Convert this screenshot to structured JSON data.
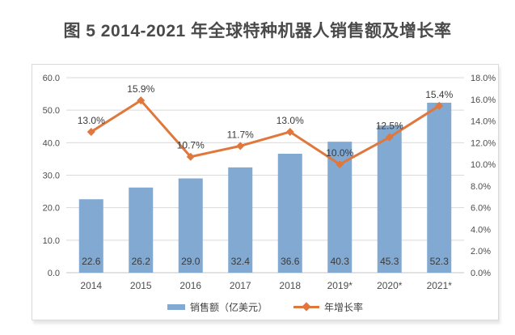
{
  "page": {
    "title": "图 5 2014-2021 年全球特种机器人销售额及增长率"
  },
  "chart_data": {
    "type": "bar",
    "subtype": "bar-line-combo",
    "title": "图 5 2014-2021 年全球特种机器人销售额及增长率",
    "categories": [
      "2014",
      "2015",
      "2016",
      "2017",
      "2018",
      "2019*",
      "2020*",
      "2021*"
    ],
    "series": [
      {
        "name": "销售额（亿美元）",
        "type": "bar",
        "axis": "left",
        "color": "#82a9d1",
        "values": [
          22.6,
          26.2,
          29.0,
          32.4,
          36.6,
          40.3,
          45.3,
          52.3
        ],
        "labels": [
          "22.6",
          "26.2",
          "29.0",
          "32.4",
          "36.6",
          "40.3",
          "45.3",
          "52.3"
        ]
      },
      {
        "name": "年增长率",
        "type": "line",
        "axis": "right",
        "color": "#e0773c",
        "values": [
          13.0,
          15.9,
          10.7,
          11.7,
          13.0,
          10.0,
          12.5,
          15.4
        ],
        "labels": [
          "13.0%",
          "15.9%",
          "10.7%",
          "11.7%",
          "13.0%",
          "10.0%",
          "12.5%",
          "15.4%"
        ]
      }
    ],
    "left_axis": {
      "min": 0,
      "max": 60,
      "step": 10,
      "tick_labels": [
        "0.0",
        "10.0",
        "20.0",
        "30.0",
        "40.0",
        "50.0",
        "60.0"
      ]
    },
    "right_axis": {
      "min": 0,
      "max": 18,
      "step": 2,
      "tick_labels": [
        "0.0%",
        "2.0%",
        "4.0%",
        "6.0%",
        "8.0%",
        "10.0%",
        "12.0%",
        "14.0%",
        "16.0%",
        "18.0%"
      ]
    },
    "grid": true,
    "legend_position": "bottom",
    "colors": {
      "gridline": "#d9d9d9",
      "axis_text": "#4d4d4d",
      "data_label": "#3a3a3a",
      "title_text": "#4a4a4a"
    }
  }
}
